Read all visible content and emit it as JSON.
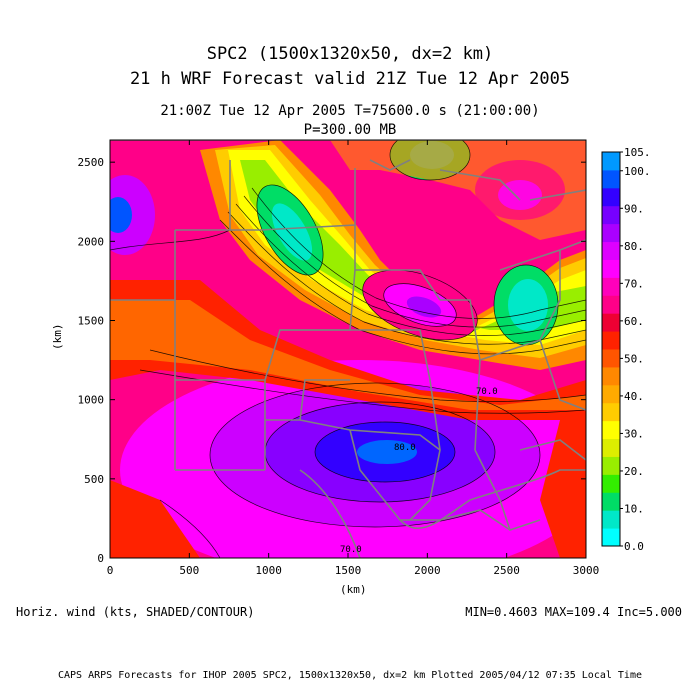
{
  "header": {
    "title_line1": "SPC2 (1500x1320x50, dx=2 km)",
    "title_line2": "21 h WRF Forecast valid 21Z Tue 12 Apr 2005",
    "subtitle_line1": "21:00Z Tue 12 Apr 2005     T=75600.0 s (21:00:00)",
    "subtitle_line2": "P=300.00 MB"
  },
  "axes": {
    "ylabel": "(km)",
    "xlabel": "(km)",
    "xticks": [
      "0",
      "500",
      "1000",
      "1500",
      "2000",
      "2500",
      "3000"
    ],
    "yticks": [
      "0",
      "500",
      "1000",
      "1500",
      "2000",
      "2500"
    ]
  },
  "colorbar": {
    "labels": [
      "0.0",
      "10.",
      "20.",
      "30.",
      "40.",
      "50.",
      "60.",
      "70.",
      "80.",
      "90.",
      "100.",
      "105."
    ],
    "colors": [
      "#00ffff",
      "#00e8c8",
      "#00dd66",
      "#33ee00",
      "#99ee00",
      "#ddee00",
      "#ffff00",
      "#ffcc00",
      "#ffaa00",
      "#ff8800",
      "#ff5500",
      "#ff2200",
      "#ee0033",
      "#ff0088",
      "#ff00bb",
      "#ff00ff",
      "#dd00ff",
      "#aa00ff",
      "#7700ff",
      "#3300ff",
      "#0055ff",
      "#0099ff"
    ]
  },
  "map_labels": [
    "70.0",
    "80.0",
    "70.0"
  ],
  "footer": {
    "left": "Horiz. wind (kts, SHADED/CONTOUR)",
    "right": "MIN=0.4603 MAX=109.4 Inc=5.000",
    "bottom": "CAPS ARPS Forecasts for IHOP 2005  SPC2, 1500x1320x50, dx=2 km  Plotted 2005/04/12 07:35 Local Time"
  }
}
